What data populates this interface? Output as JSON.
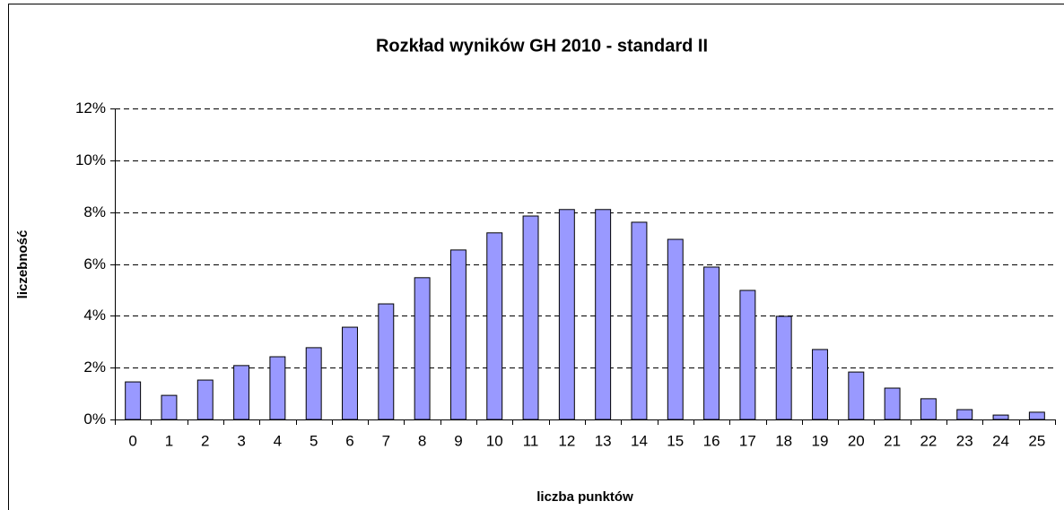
{
  "chart_data": {
    "type": "bar",
    "title": "Rozkład wyników GH 2010 - standard II",
    "xlabel": "liczba punktów",
    "ylabel": "liczebność",
    "categories": [
      "0",
      "1",
      "2",
      "3",
      "4",
      "5",
      "6",
      "7",
      "8",
      "9",
      "10",
      "11",
      "12",
      "13",
      "14",
      "15",
      "16",
      "17",
      "18",
      "19",
      "20",
      "21",
      "22",
      "23",
      "24",
      "25"
    ],
    "values": [
      1.45,
      0.93,
      1.52,
      2.08,
      2.42,
      2.77,
      3.56,
      4.46,
      5.47,
      6.54,
      7.2,
      7.85,
      8.1,
      8.1,
      7.61,
      6.95,
      5.88,
      4.98,
      3.98,
      2.7,
      1.83,
      1.21,
      0.8,
      0.38,
      0.17,
      0.28
    ],
    "color": "#9999ff",
    "ylim": [
      0,
      12
    ],
    "yticks": [
      {
        "value": 0,
        "label": "0%"
      },
      {
        "value": 2,
        "label": "2%"
      },
      {
        "value": 4,
        "label": "4%"
      },
      {
        "value": 6,
        "label": "6%"
      },
      {
        "value": 8,
        "label": "8%"
      },
      {
        "value": 10,
        "label": "10%"
      },
      {
        "value": 12,
        "label": "12%"
      }
    ],
    "grid": true
  }
}
